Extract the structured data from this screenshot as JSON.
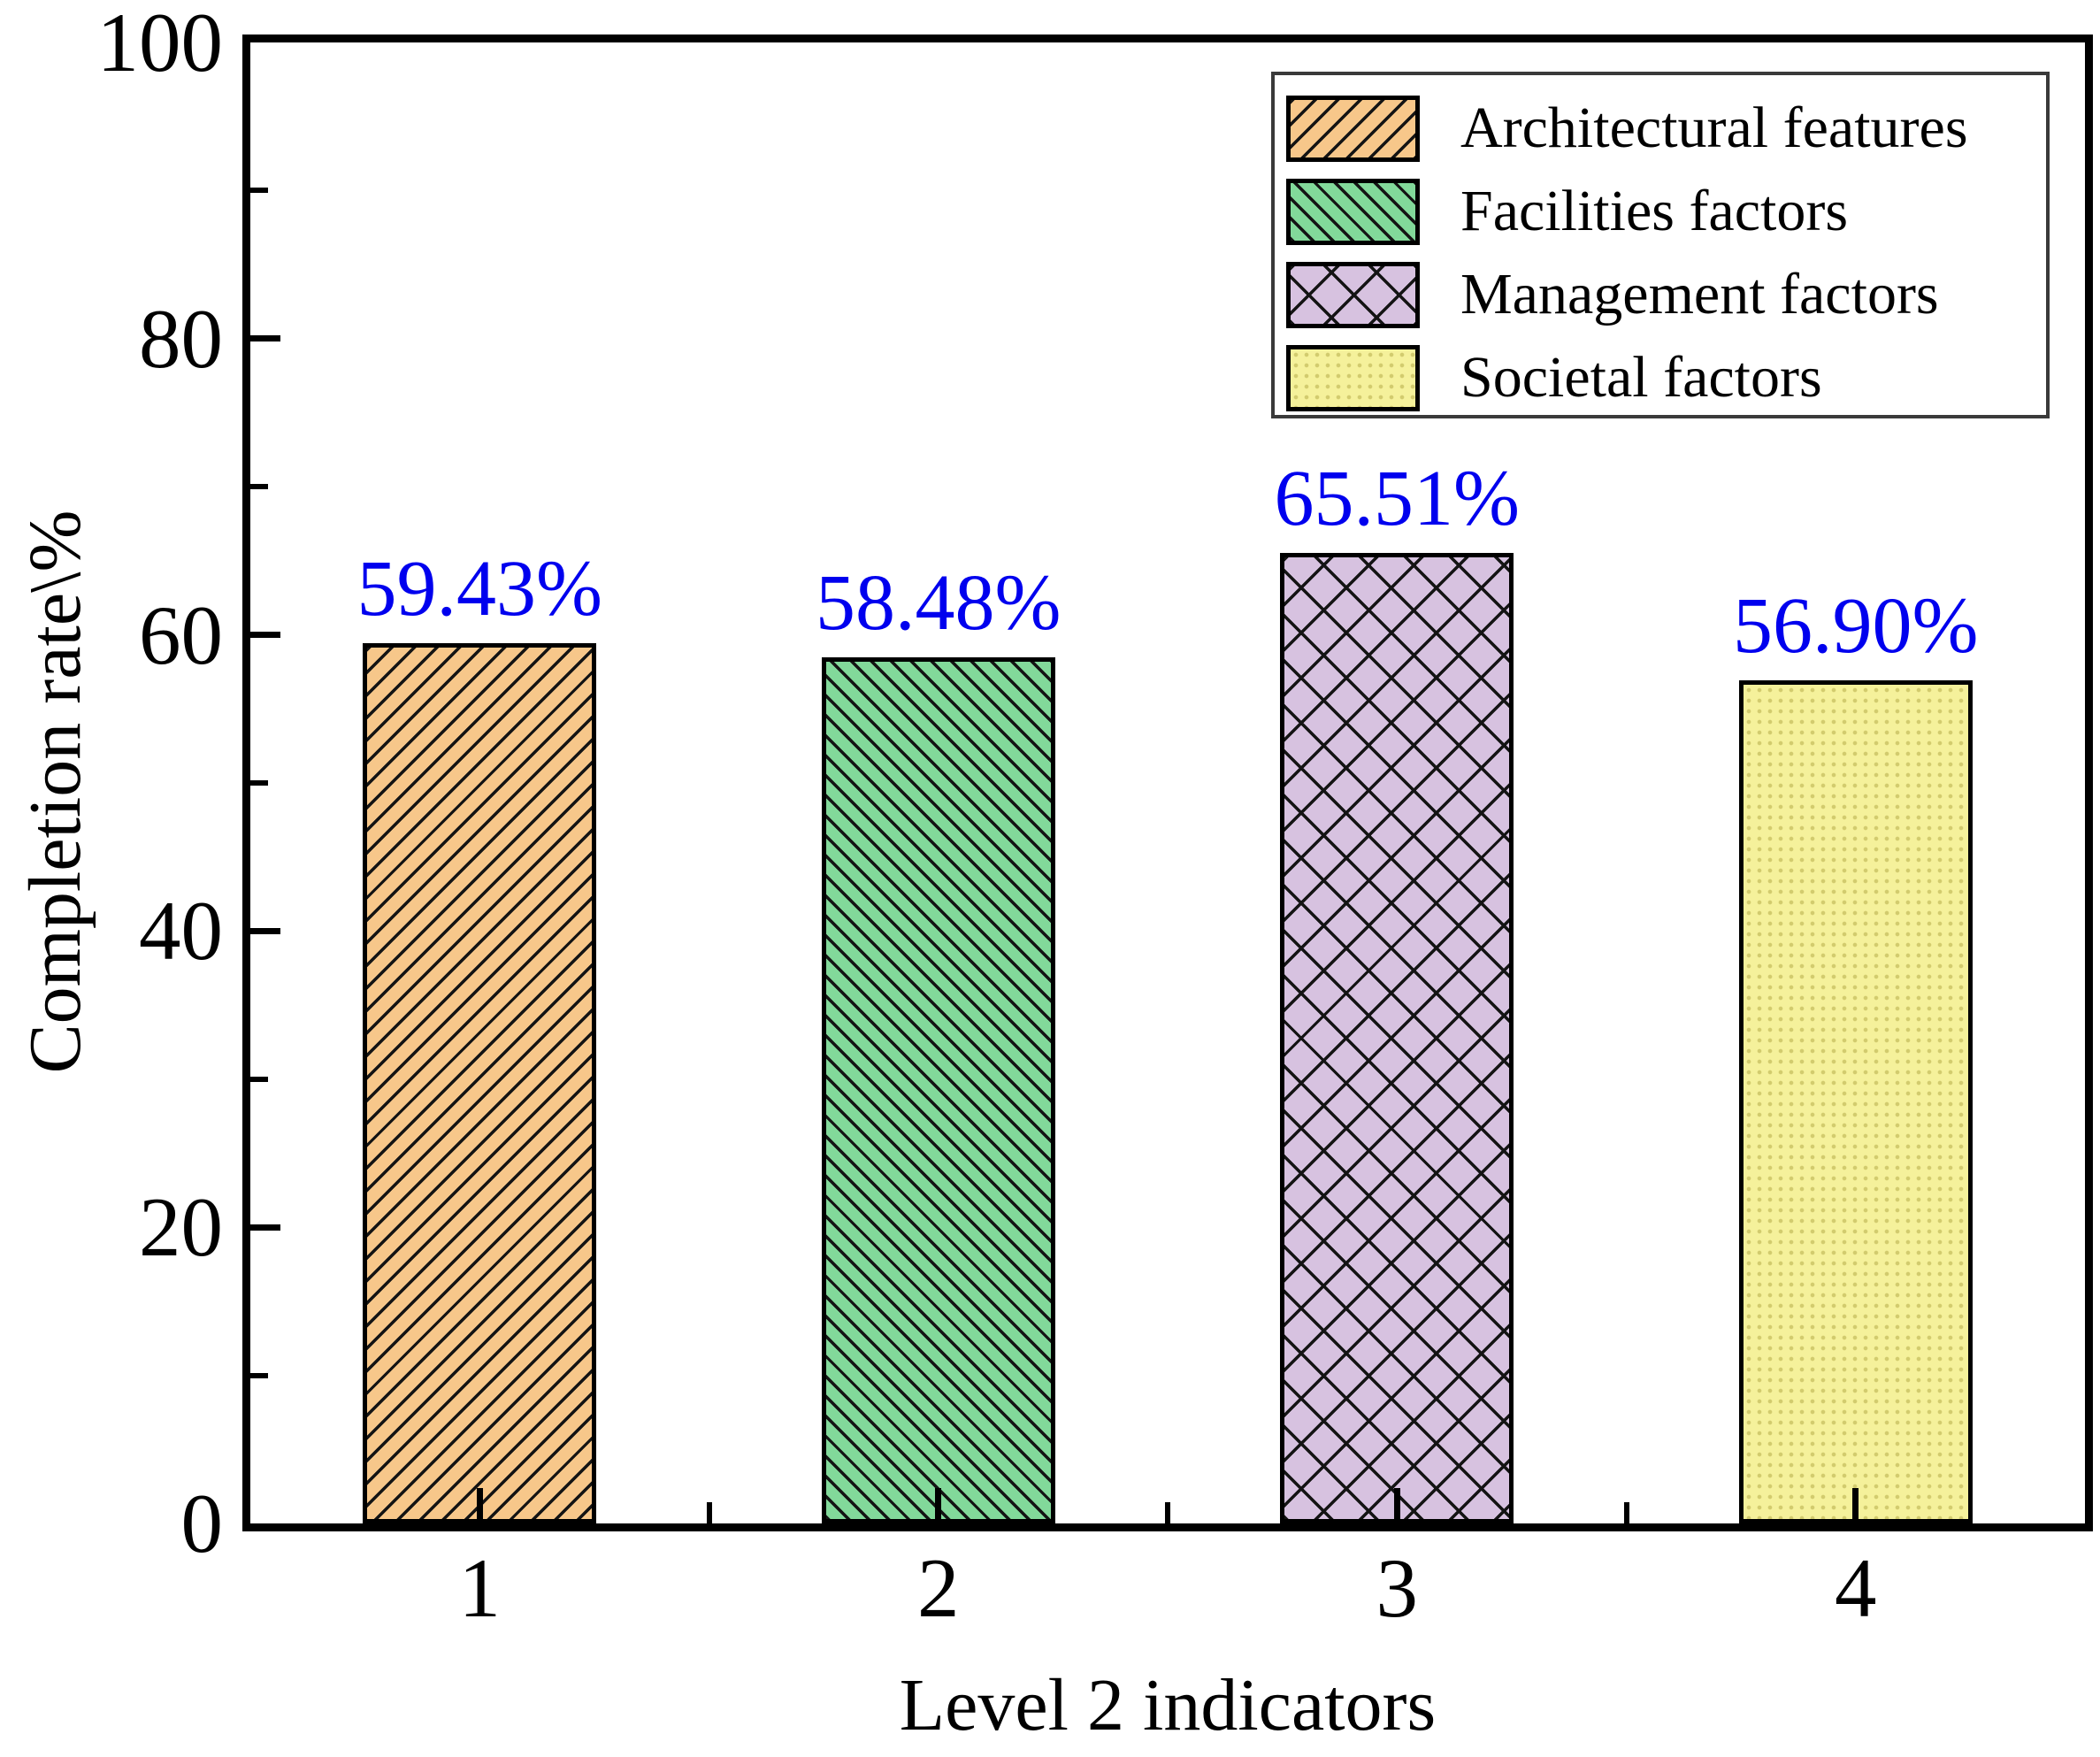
{
  "chart_data": {
    "type": "bar",
    "title": "",
    "xlabel": "Level 2 indicators",
    "ylabel": "Completion rate\\%",
    "categories": [
      "1",
      "2",
      "3",
      "4"
    ],
    "series": [
      {
        "name": "Architectural features",
        "value": 59.43,
        "value_label": "59.43%",
        "fill": "#F7C78A",
        "hatch": "forward-diagonal"
      },
      {
        "name": "Facilities factors",
        "value": 58.48,
        "value_label": "58.48%",
        "fill": "#82D99A",
        "hatch": "backward-diagonal"
      },
      {
        "name": "Management factors",
        "value": 65.51,
        "value_label": "65.51%",
        "fill": "#D7C2E0",
        "hatch": "cross-diagonal"
      },
      {
        "name": "Societal factors",
        "value": 56.9,
        "value_label": "56.90%",
        "fill": "#F5F19B",
        "hatch": "dots"
      }
    ],
    "ylim": [
      0,
      100
    ],
    "yticks_major": [
      0,
      20,
      40,
      60,
      80,
      100
    ],
    "yticks_minor": [
      10,
      30,
      50,
      70,
      90
    ],
    "ytick_labels": [
      "0",
      "20",
      "40",
      "60",
      "80",
      "100"
    ],
    "grid": false,
    "legend_position": "top-right",
    "colors": {
      "value_label": "#0000EE",
      "axis": "#000000",
      "legend_border": "#3a3a3a",
      "background": "#ffffff"
    }
  }
}
